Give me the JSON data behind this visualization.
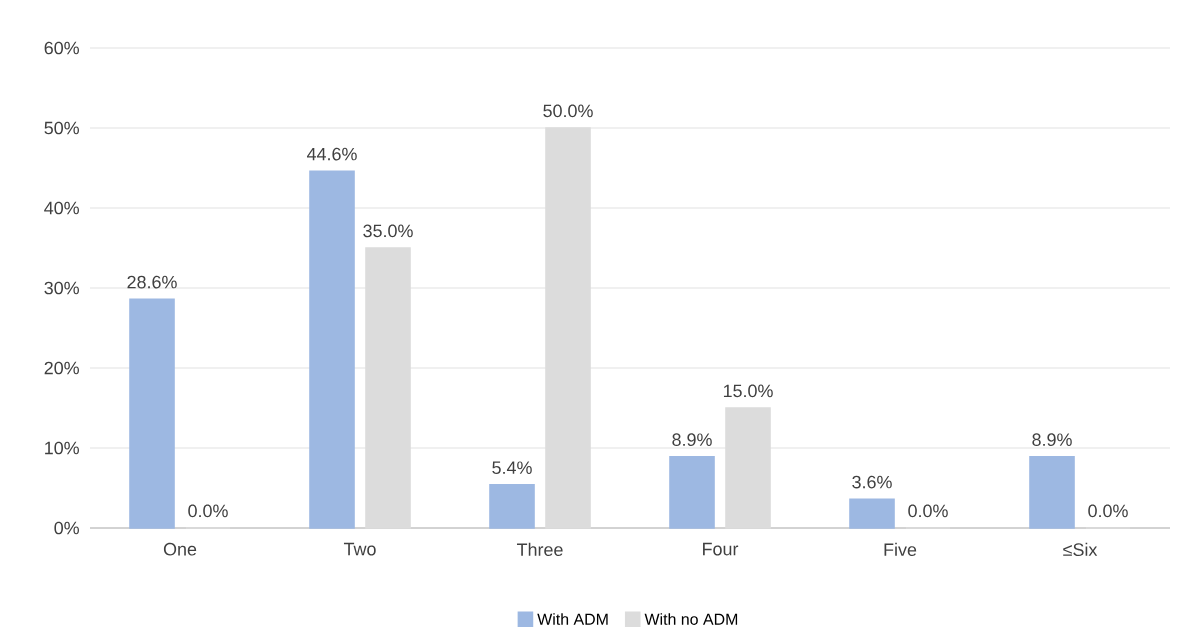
{
  "chart_data": {
    "type": "bar",
    "categories": [
      "One",
      "Two",
      "Three",
      "Four",
      "Five",
      "≤Six"
    ],
    "series": [
      {
        "name": "With ADM",
        "color": "#9db8e2",
        "values": [
          28.6,
          44.6,
          5.4,
          8.9,
          3.6,
          8.9
        ]
      },
      {
        "name": "With no ADM",
        "color": "#dcdcdc",
        "values": [
          0.0,
          35.0,
          50.0,
          15.0,
          0.0,
          0.0
        ]
      }
    ],
    "ylim": [
      0,
      60
    ],
    "yticks": [
      {
        "value": 0,
        "label": "0%"
      },
      {
        "value": 10,
        "label": "10%"
      },
      {
        "value": 20,
        "label": "20%"
      },
      {
        "value": 30,
        "label": "30%"
      },
      {
        "value": 40,
        "label": "40%"
      },
      {
        "value": 50,
        "label": "50%"
      },
      {
        "value": 60,
        "label": "60%"
      }
    ],
    "value_labels": [
      [
        "28.6%",
        "44.6%",
        "5.4%",
        "8.9%",
        "3.6%",
        "8.9%"
      ],
      [
        "0.0%",
        "35.0%",
        "50.0%",
        "15.0%",
        "0.0%",
        "0.0%"
      ]
    ],
    "grid": "y",
    "legend": "bottom"
  }
}
